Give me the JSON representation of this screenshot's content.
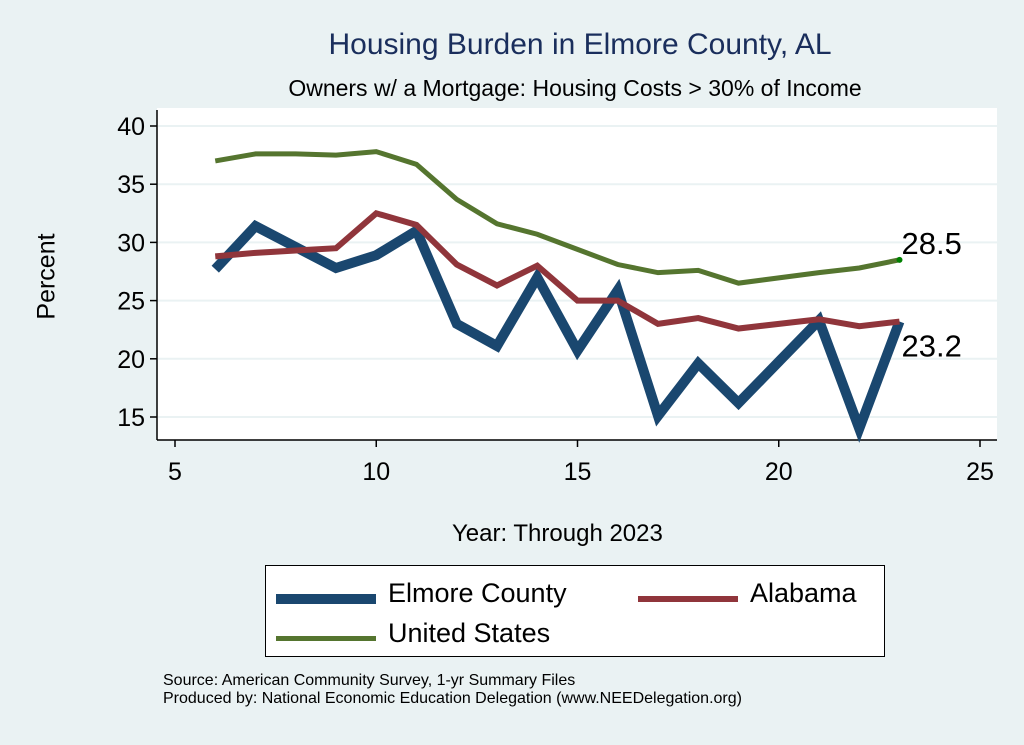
{
  "chart_data": {
    "type": "line",
    "title": "Housing Burden in Elmore County, AL",
    "subtitle": "Owners w/ a Mortgage: Housing Costs > 30% of Income",
    "xlabel": "Year: Through 2023",
    "ylabel": "Percent",
    "xlim": [
      5,
      25
    ],
    "ylim": [
      15,
      40
    ],
    "xticks": [
      5,
      10,
      15,
      20,
      25
    ],
    "yticks": [
      15,
      20,
      25,
      30,
      35,
      40
    ],
    "grid": true,
    "legend_position": "bottom",
    "x": [
      6,
      7,
      8,
      9,
      10,
      11,
      12,
      13,
      14,
      15,
      16,
      17,
      18,
      19,
      21,
      22,
      23
    ],
    "series": [
      {
        "name": "Elmore County",
        "color": "#1a476f",
        "values": [
          27.7,
          31.4,
          29.6,
          27.8,
          28.9,
          31.0,
          23.0,
          21.1,
          27.0,
          20.7,
          25.9,
          15.1,
          19.6,
          16.2,
          23.3,
          14.0,
          23.2
        ]
      },
      {
        "name": "Alabama",
        "color": "#90353b",
        "values": [
          28.8,
          29.1,
          29.3,
          29.5,
          32.5,
          31.5,
          28.1,
          26.3,
          28.0,
          25.0,
          25.0,
          23.0,
          23.5,
          22.6,
          23.4,
          22.8,
          23.2
        ]
      },
      {
        "name": "United States",
        "color": "#55752f",
        "values": [
          37.0,
          37.6,
          37.6,
          37.5,
          37.8,
          36.7,
          33.7,
          31.6,
          30.7,
          29.4,
          28.1,
          27.4,
          27.6,
          26.5,
          27.4,
          27.8,
          28.5
        ]
      }
    ],
    "annotations": [
      "28.5",
      "23.2"
    ]
  },
  "source": "Source: American Community Survey, 1-yr Summary Files",
  "producer": "Produced by: National Economic Education Delegation (www.NEEDelegation.org)"
}
